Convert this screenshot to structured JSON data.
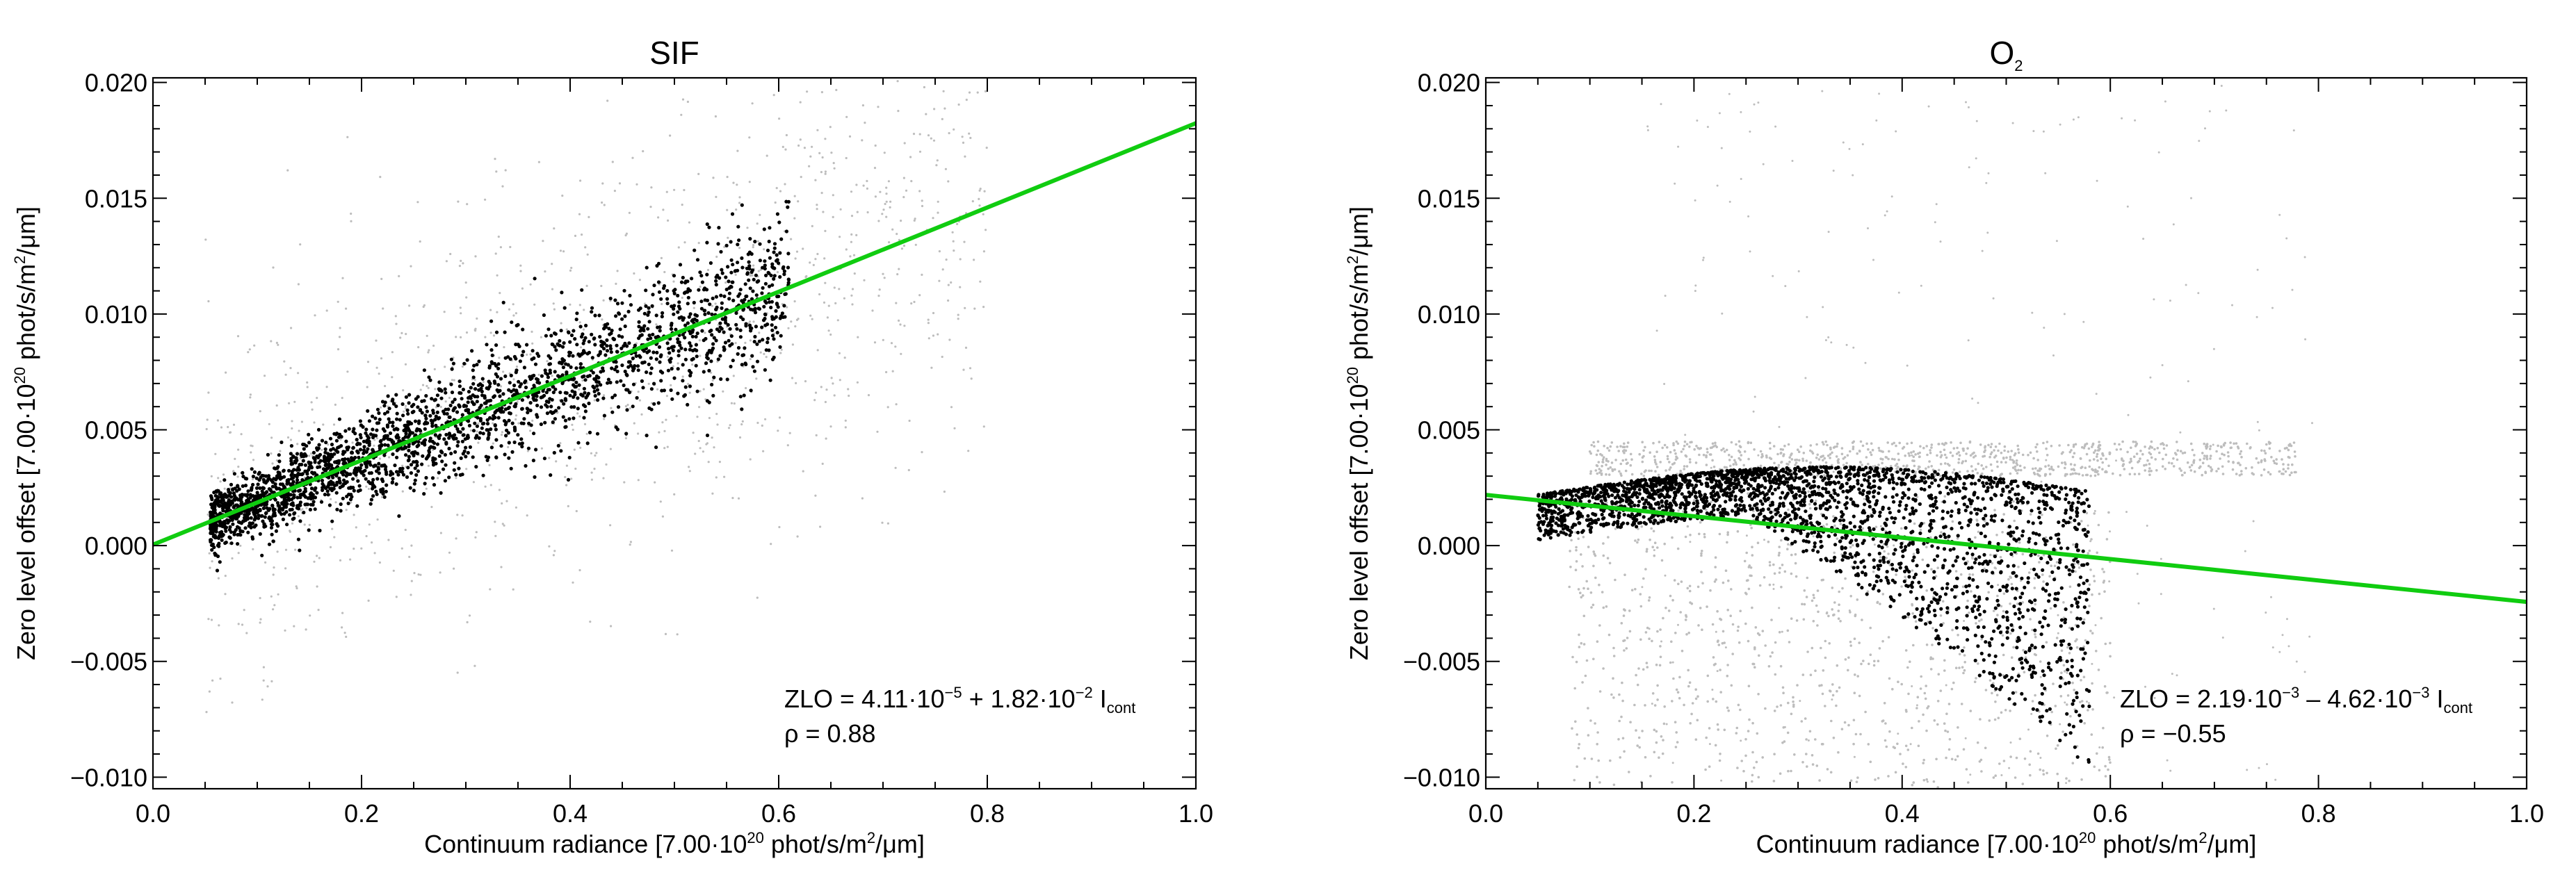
{
  "colors": {
    "fit": "#10cc10",
    "points_main": "#000000",
    "points_outlier": "#bdbdbd"
  },
  "chart_data": [
    {
      "type": "scatter",
      "title": "SIF",
      "title_sub": "",
      "xlabel_parts": [
        "Continuum radiance [7.00·10",
        "20",
        " phot/s/m",
        "2",
        "/μm]"
      ],
      "ylabel_parts": [
        "Zero level offset [7.00·10",
        "20",
        " phot/s/m",
        "2",
        "/μm]"
      ],
      "xlim": [
        0.0,
        1.0
      ],
      "ylim": [
        -0.0105,
        0.0202
      ],
      "xticks": [
        0.0,
        0.2,
        0.4,
        0.6,
        0.8,
        1.0
      ],
      "xtick_labels": [
        "0.0",
        "0.2",
        "0.4",
        "0.6",
        "0.8",
        "1.0"
      ],
      "yticks": [
        -0.01,
        -0.005,
        0.0,
        0.005,
        0.01,
        0.015,
        0.02
      ],
      "ytick_labels": [
        "−0.010",
        "−0.005",
        "0.000",
        "0.005",
        "0.010",
        "0.015",
        "0.020"
      ],
      "fit": {
        "intercept": 4.11e-05,
        "slope": 0.0182
      },
      "equation": {
        "lhs": "ZLO = 4.11·10",
        "exp1": "−5",
        "mid": " + 1.82·10",
        "exp2": "−2",
        "tail": " I",
        "sub": "cont"
      },
      "rho_text": "ρ = 0.88",
      "point_cloud": {
        "x_range": [
          0.055,
          0.61
        ],
        "y_at_x": "intercept + slope·x",
        "y_spread": [
          0.0012,
          0.0032
        ],
        "outliers_x_range": [
          0.05,
          0.8
        ],
        "outliers_y_range": [
          -0.009,
          0.0195
        ]
      }
    },
    {
      "type": "scatter",
      "title": "O",
      "title_sub": "2",
      "xlabel_parts": [
        "Continuum radiance [7.00·10",
        "20",
        " phot/s/m",
        "2",
        "/μm]"
      ],
      "ylabel_parts": [
        "Zero level offset [7.00·10",
        "20",
        " phot/s/m",
        "2",
        "/μm]"
      ],
      "xlim": [
        0.0,
        1.0
      ],
      "ylim": [
        -0.0105,
        0.0202
      ],
      "xticks": [
        0.0,
        0.2,
        0.4,
        0.6,
        0.8,
        1.0
      ],
      "xtick_labels": [
        "0.0",
        "0.2",
        "0.4",
        "0.6",
        "0.8",
        "1.0"
      ],
      "yticks": [
        -0.01,
        -0.005,
        0.0,
        0.005,
        0.01,
        0.015,
        0.02
      ],
      "ytick_labels": [
        "−0.010",
        "−0.005",
        "0.000",
        "0.005",
        "0.010",
        "0.015",
        "0.020"
      ],
      "fit": {
        "intercept": 0.00219,
        "slope": -0.00462
      },
      "equation": {
        "lhs": "ZLO = 2.19·10",
        "exp1": "−3",
        "mid": " – 4.62·10",
        "exp2": "−3",
        "tail": " I",
        "sub": "cont"
      },
      "rho_text": "ρ = −0.55",
      "point_cloud": {
        "x_range": [
          0.05,
          0.58
        ],
        "y_range": [
          -0.0095,
          0.0035
        ],
        "outliers_band_y": [
          0.003,
          0.0045
        ],
        "outliers_x_range": [
          0.1,
          0.78
        ],
        "outliers_y_range": [
          -0.0105,
          0.02
        ]
      }
    }
  ]
}
